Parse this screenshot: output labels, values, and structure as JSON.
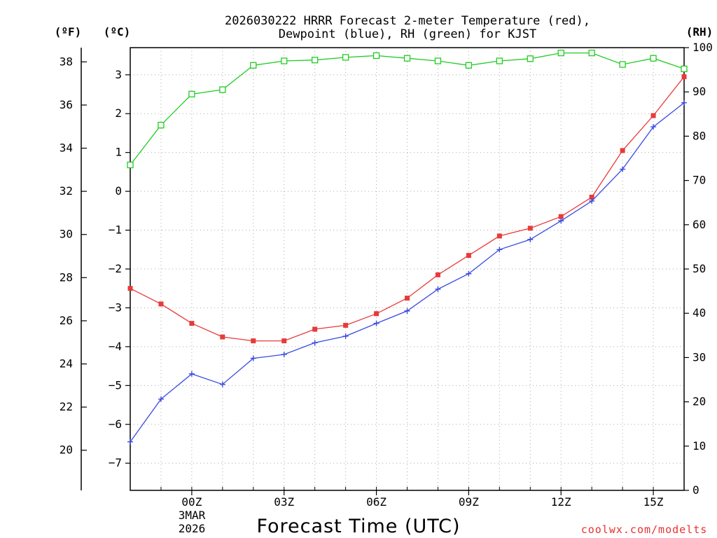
{
  "chart_data": {
    "type": "line",
    "title_line1": "2026030222 HRRR Forecast 2-meter Temperature (red),",
    "title_line2": "Dewpoint (blue), RH (green) for KJST",
    "xlabel": "Forecast Time (UTC)",
    "credit": "coolwx.com/modelts",
    "left_outer_unit": "(ºF)",
    "left_inner_unit": "(ºC)",
    "right_unit": "(RH)",
    "x": [
      -2,
      -1,
      0,
      1,
      2,
      3,
      4,
      5,
      6,
      7,
      8,
      9,
      10,
      11,
      12,
      13,
      14,
      15,
      16
    ],
    "xlim": [
      -2,
      16
    ],
    "x_ticks": [
      {
        "x": 0,
        "label": "00Z"
      },
      {
        "x": 3,
        "label": "03Z"
      },
      {
        "x": 6,
        "label": "06Z"
      },
      {
        "x": 9,
        "label": "09Z"
      },
      {
        "x": 12,
        "label": "12Z"
      },
      {
        "x": 15,
        "label": "15Z"
      }
    ],
    "date_line1": "3MAR",
    "date_line2": "2026",
    "celsius_lim": [
      -7.7,
      3.7
    ],
    "celsius_ticks": [
      "3",
      "2",
      "1",
      "0",
      "−1",
      "−2",
      "−3",
      "−4",
      "−5",
      "−6",
      "−7"
    ],
    "fahrenheit_ticks": [
      "38",
      "36",
      "34",
      "32",
      "30",
      "28",
      "26",
      "24",
      "22",
      "20"
    ],
    "rh_lim": [
      0,
      100
    ],
    "rh_ticks": [
      "100",
      "90",
      "80",
      "70",
      "60",
      "50",
      "40",
      "30",
      "20",
      "10",
      "0"
    ],
    "series": [
      {
        "name": "Temperature",
        "unit": "C",
        "color": "#e83a3a",
        "marker": "filled-square",
        "values": [
          -2.5,
          -2.9,
          -3.4,
          -3.75,
          -3.85,
          -3.85,
          -3.55,
          -3.45,
          -3.15,
          -2.75,
          -2.15,
          -1.65,
          -1.15,
          -0.95,
          -0.65,
          -0.15,
          1.05,
          1.95,
          2.95
        ]
      },
      {
        "name": "Dewpoint",
        "unit": "C",
        "color": "#3a4ae0",
        "marker": "plus",
        "values": [
          -6.45,
          -5.35,
          -4.7,
          -4.97,
          -4.3,
          -4.2,
          -3.9,
          -3.73,
          -3.4,
          -3.08,
          -2.52,
          -2.12,
          -1.5,
          -1.24,
          -0.76,
          -0.25,
          0.57,
          1.66,
          2.28
        ]
      },
      {
        "name": "RH",
        "unit": "%",
        "color": "#22cc22",
        "marker": "open-square",
        "values": [
          73.5,
          82.5,
          89.5,
          90.5,
          96,
          97,
          97.2,
          97.8,
          98.2,
          97.6,
          97,
          96,
          97,
          97.5,
          98.8,
          98.8,
          96.2,
          97.6,
          95.2
        ]
      }
    ]
  }
}
